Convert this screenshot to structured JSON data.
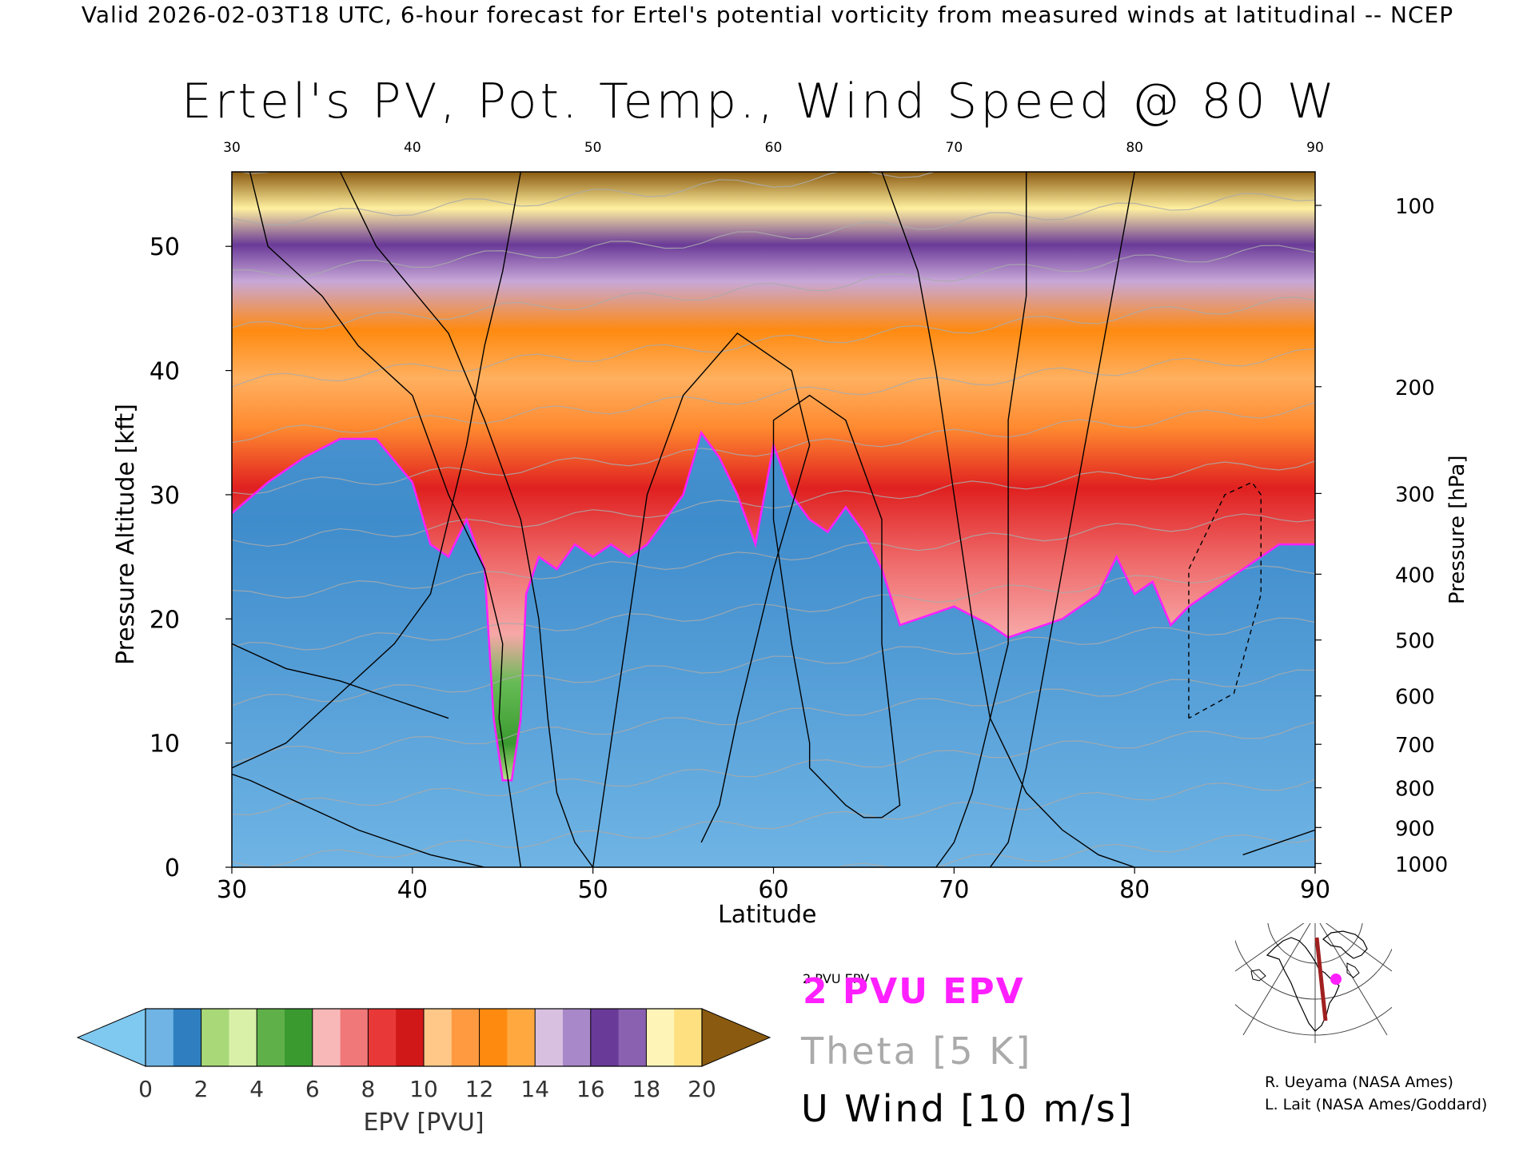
{
  "header": "Valid 2026-02-03T18 UTC, 6-hour forecast for Ertel's potential vorticity from measured winds at latitudinal -- NCEP",
  "chart_data": {
    "type": "heatmap",
    "title": "Ertel's PV, Pot. Temp., Wind Speed @ 80 W",
    "xlabel": "Latitude",
    "ylabel_left": "Pressure Altitude [kft]",
    "ylabel_right": "Pressure [hPa]",
    "xlim": [
      30,
      90
    ],
    "ylim": [
      0,
      56
    ],
    "x_ticks": [
      "30",
      "40",
      "50",
      "60",
      "70",
      "80",
      "90"
    ],
    "y_ticks": [
      "0",
      "10",
      "20",
      "30",
      "40",
      "50"
    ],
    "pressure_ticks": [
      {
        "label": "100",
        "kft": 53.3
      },
      {
        "label": "200",
        "kft": 38.7
      },
      {
        "label": "300",
        "kft": 30.1
      },
      {
        "label": "400",
        "kft": 23.6
      },
      {
        "label": "500",
        "kft": 18.3
      },
      {
        "label": "600",
        "kft": 13.8
      },
      {
        "label": "700",
        "kft": 9.9
      },
      {
        "label": "800",
        "kft": 6.4
      },
      {
        "label": "900",
        "kft": 3.2
      },
      {
        "label": "1000",
        "kft": 0.3
      }
    ],
    "pv_2_line": [
      [
        30,
        28.5
      ],
      [
        32,
        31
      ],
      [
        34,
        33
      ],
      [
        36,
        34.5
      ],
      [
        38,
        34.5
      ],
      [
        40,
        31
      ],
      [
        41,
        26
      ],
      [
        42,
        25
      ],
      [
        43,
        28
      ],
      [
        44,
        24
      ],
      [
        44.5,
        12
      ],
      [
        45,
        7
      ],
      [
        45.5,
        7
      ],
      [
        46,
        12
      ],
      [
        46.3,
        22
      ],
      [
        47,
        25
      ],
      [
        48,
        24
      ],
      [
        49,
        26
      ],
      [
        50,
        25
      ],
      [
        51,
        26
      ],
      [
        52,
        25
      ],
      [
        53,
        26
      ],
      [
        54,
        28
      ],
      [
        55,
        30
      ],
      [
        56,
        35
      ],
      [
        57,
        33
      ],
      [
        58,
        30
      ],
      [
        59,
        26
      ],
      [
        60,
        34
      ],
      [
        61,
        30
      ],
      [
        62,
        28
      ],
      [
        63,
        27
      ],
      [
        64,
        29
      ],
      [
        65,
        27
      ],
      [
        66,
        24
      ],
      [
        67,
        19.5
      ],
      [
        68,
        20
      ],
      [
        70,
        21
      ],
      [
        72,
        19.5
      ],
      [
        73,
        18.5
      ],
      [
        74,
        19
      ],
      [
        76,
        20
      ],
      [
        78,
        22
      ],
      [
        79,
        25
      ],
      [
        80,
        22
      ],
      [
        81,
        23
      ],
      [
        82,
        19.5
      ],
      [
        83,
        21
      ],
      [
        84,
        22
      ],
      [
        86,
        24
      ],
      [
        88,
        26
      ],
      [
        90,
        26
      ]
    ],
    "theta_levels_K": [
      260,
      270,
      280,
      290,
      300,
      310,
      320,
      330,
      340,
      350,
      360,
      370,
      380,
      390,
      400
    ],
    "wind_contours_ms": [
      -10,
      0,
      10,
      20,
      30,
      40,
      50
    ],
    "colorbar": {
      "label": "EPV [PVU]",
      "ticks": [
        "0",
        "2",
        "4",
        "6",
        "8",
        "10",
        "12",
        "14",
        "16",
        "18",
        "20"
      ],
      "colors": [
        "#7fc8f0",
        "#2f7fc0",
        "#a8d878",
        "#3a9a30",
        "#f8a0a0",
        "#e02020",
        "#ffb060",
        "#ff8a10",
        "#c8a8d8",
        "#6a3a98",
        "#fff0a0",
        "#8a5a10"
      ],
      "under_color": "#7fc8f0",
      "over_color": "#8a5a10"
    },
    "grid": false
  },
  "legend": {
    "pv": "2 PVU EPV",
    "theta": "Theta [5 K]",
    "wind": "U Wind [10 m/s]"
  },
  "credits": {
    "line1": "R. Ueyama (NASA Ames)",
    "line2": "L. Lait (NASA Ames/Goddard)"
  },
  "colors": {
    "pv_line": "#ff1fff",
    "theta_line": "#aaaaaa",
    "wind_line": "#000000",
    "section_line": "#a02020"
  }
}
